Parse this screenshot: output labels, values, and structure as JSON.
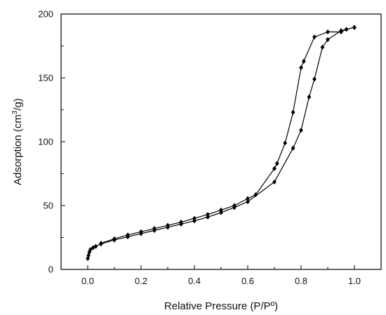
{
  "chart_data": {
    "type": "line",
    "xlabel": "Relative Pressure (P/Pº)",
    "ylabel_parts": {
      "pre": "Adsorption (cm",
      "sup": "3",
      "post": "/g)"
    },
    "xlim": [
      -0.1,
      1.1
    ],
    "ylim": [
      0,
      200
    ],
    "x_ticks": [
      0.0,
      0.2,
      0.4,
      0.6,
      0.8,
      1.0
    ],
    "x_tick_labels": [
      "0.0",
      "0.2",
      "0.4",
      "0.6",
      "0.8",
      "1.0"
    ],
    "y_ticks": [
      0,
      50,
      100,
      150,
      200
    ],
    "y_tick_labels": [
      "0",
      "50",
      "100",
      "150",
      "200"
    ],
    "grid": false,
    "legend": "none",
    "line_color": "#000000",
    "marker": "diamond",
    "series": [
      {
        "values_xy": [
          [
            0.0,
            8.5
          ],
          [
            0.003,
            11
          ],
          [
            0.006,
            13.5
          ],
          [
            0.01,
            15.5
          ],
          [
            0.02,
            17
          ],
          [
            0.03,
            18
          ],
          [
            0.05,
            20
          ],
          [
            0.1,
            23
          ],
          [
            0.15,
            25.5
          ],
          [
            0.2,
            28
          ],
          [
            0.25,
            30.5
          ],
          [
            0.3,
            33
          ],
          [
            0.35,
            35.5
          ],
          [
            0.4,
            38
          ],
          [
            0.45,
            41
          ],
          [
            0.5,
            44.5
          ],
          [
            0.55,
            48.5
          ],
          [
            0.6,
            53
          ],
          [
            0.7,
            68.5
          ],
          [
            0.77,
            95
          ],
          [
            0.8,
            109
          ],
          [
            0.83,
            135
          ],
          [
            0.85,
            149
          ],
          [
            0.88,
            174
          ],
          [
            0.9,
            180
          ],
          [
            0.95,
            187
          ],
          [
            1.0,
            189.5
          ]
        ]
      },
      {
        "values_xy": [
          [
            1.0,
            189.5
          ],
          [
            0.97,
            188
          ],
          [
            0.95,
            186
          ],
          [
            0.9,
            186
          ],
          [
            0.85,
            182
          ],
          [
            0.81,
            163
          ],
          [
            0.8,
            158
          ],
          [
            0.77,
            123
          ],
          [
            0.74,
            99
          ],
          [
            0.71,
            83
          ],
          [
            0.7,
            79
          ],
          [
            0.63,
            58.5
          ],
          [
            0.6,
            55.5
          ],
          [
            0.55,
            50
          ],
          [
            0.5,
            46.5
          ],
          [
            0.45,
            43
          ],
          [
            0.4,
            40
          ],
          [
            0.35,
            37
          ],
          [
            0.3,
            34.5
          ],
          [
            0.25,
            32
          ],
          [
            0.2,
            29.5
          ],
          [
            0.15,
            27
          ],
          [
            0.1,
            24
          ],
          [
            0.05,
            20.5
          ]
        ]
      }
    ]
  }
}
